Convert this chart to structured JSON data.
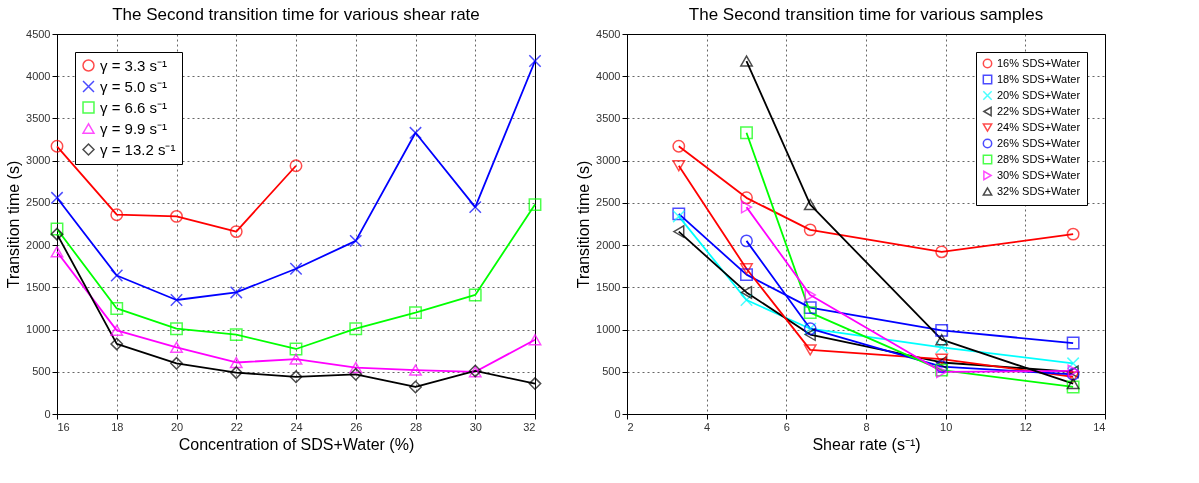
{
  "chart_data": [
    {
      "type": "line",
      "title": "The Second transition time for various shear rate",
      "xlabel": "Concentration of SDS+Water (%)",
      "ylabel": "Transition time (s)",
      "x": [
        16,
        18,
        20,
        22,
        24,
        26,
        28,
        30,
        32
      ],
      "xlim": [
        16,
        32
      ],
      "xticks": [
        16,
        18,
        20,
        22,
        24,
        26,
        28,
        30,
        32
      ],
      "ylim": [
        0,
        4500
      ],
      "yticks": [
        0,
        500,
        1000,
        1500,
        2000,
        2500,
        3000,
        3500,
        4000,
        4500
      ],
      "grid": true,
      "legend": "top left",
      "line_style": "solid",
      "series": [
        {
          "name": "γ = 3.3 s⁻¹",
          "color": "#ff0000",
          "marker": "circle",
          "values": [
            3170,
            2360,
            2340,
            2160,
            2940,
            null,
            null,
            null,
            null
          ]
        },
        {
          "name": "γ = 5.0 s⁻¹",
          "color": "#0000ff",
          "marker": "cross",
          "values": [
            2560,
            1640,
            1350,
            1440,
            1720,
            2050,
            3330,
            2450,
            4180
          ]
        },
        {
          "name": "γ = 6.6 s⁻¹",
          "color": "#00ff00",
          "marker": "square",
          "values": [
            2190,
            1250,
            1010,
            940,
            770,
            1010,
            1200,
            1410,
            2480
          ]
        },
        {
          "name": "γ = 9.9 s⁻¹",
          "color": "#ff00ff",
          "marker": "triangle",
          "values": [
            1920,
            990,
            790,
            610,
            650,
            550,
            520,
            500,
            880
          ]
        },
        {
          "name": "γ = 13.2 s⁻¹",
          "color": "#000000",
          "marker": "diamond",
          "values": [
            2130,
            830,
            600,
            490,
            440,
            470,
            320,
            510,
            360
          ]
        }
      ]
    },
    {
      "type": "line",
      "title": "The Second transition time for various samples",
      "xlabel": "Shear rate (s⁻¹)",
      "ylabel": "Transition time (s)",
      "x": [
        3.3,
        5.0,
        6.6,
        9.9,
        13.2
      ],
      "xlim": [
        2,
        14
      ],
      "xticks": [
        2,
        4,
        6,
        8,
        10,
        12,
        14
      ],
      "ylim": [
        0,
        4500
      ],
      "yticks": [
        0,
        500,
        1000,
        1500,
        2000,
        2500,
        3000,
        3500,
        4000,
        4500
      ],
      "grid": true,
      "legend": "top right",
      "line_style": "solid",
      "series": [
        {
          "name": "16% SDS+Water",
          "color": "#ff0000",
          "marker": "circle",
          "values": [
            3170,
            2560,
            2180,
            1920,
            2130
          ]
        },
        {
          "name": "18% SDS+Water",
          "color": "#0000ff",
          "marker": "square",
          "values": [
            2370,
            1650,
            1260,
            990,
            840
          ]
        },
        {
          "name": "20% SDS+Water",
          "color": "#00ffff",
          "marker": "cross",
          "values": [
            2340,
            1350,
            1010,
            790,
            600
          ]
        },
        {
          "name": "22% SDS+Water",
          "color": "#000000",
          "marker": "triangle-left",
          "values": [
            2160,
            1440,
            940,
            610,
            500
          ]
        },
        {
          "name": "24% SDS+Water",
          "color": "#ff0000",
          "marker": "triangle-down",
          "values": [
            2940,
            1720,
            760,
            650,
            440
          ]
        },
        {
          "name": "26% SDS+Water",
          "color": "#0000ff",
          "marker": "circle",
          "values": [
            null,
            2050,
            1010,
            560,
            470
          ]
        },
        {
          "name": "28% SDS+Water",
          "color": "#00ff00",
          "marker": "square",
          "values": [
            null,
            3330,
            1200,
            520,
            320
          ]
        },
        {
          "name": "30% SDS+Water",
          "color": "#ff00ff",
          "marker": "triangle-right",
          "values": [
            null,
            2450,
            1410,
            500,
            510
          ]
        },
        {
          "name": "32% SDS+Water",
          "color": "#000000",
          "marker": "triangle-up",
          "values": [
            null,
            4180,
            2480,
            880,
            360
          ]
        }
      ]
    }
  ]
}
